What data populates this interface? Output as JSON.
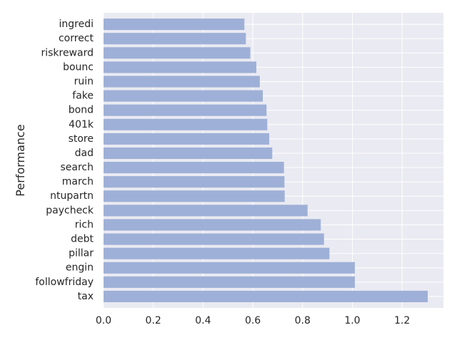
{
  "chart_data": {
    "type": "bar",
    "orientation": "horizontal",
    "title": "",
    "xlabel": "",
    "ylabel": "Performance",
    "categories": [
      "ingredi",
      "correct",
      "riskreward",
      "bounc",
      "ruin",
      "fake",
      "bond",
      "401k",
      "store",
      "dad",
      "search",
      "march",
      "ntupartn",
      "paycheck",
      "rich",
      "debt",
      "pillar",
      "engin",
      "followfriday",
      "tax"
    ],
    "values": [
      0.566,
      0.572,
      0.59,
      0.614,
      0.628,
      0.64,
      0.655,
      0.658,
      0.666,
      0.678,
      0.725,
      0.727,
      0.728,
      0.82,
      0.873,
      0.886,
      0.908,
      1.01,
      1.01,
      1.303
    ],
    "xlim": [
      0,
      1.366
    ],
    "xticks": [
      0.0,
      0.2,
      0.4,
      0.6,
      0.8,
      1.0,
      1.2
    ],
    "xtick_labels": [
      "0.0",
      "0.2",
      "0.4",
      "0.6",
      "0.8",
      "1.0",
      "1.2"
    ],
    "grid": true,
    "colors": {
      "background": "#EAEAF2",
      "bar": "#9EB0D7",
      "grid": "#FFFFFF",
      "text": "#262626"
    }
  }
}
